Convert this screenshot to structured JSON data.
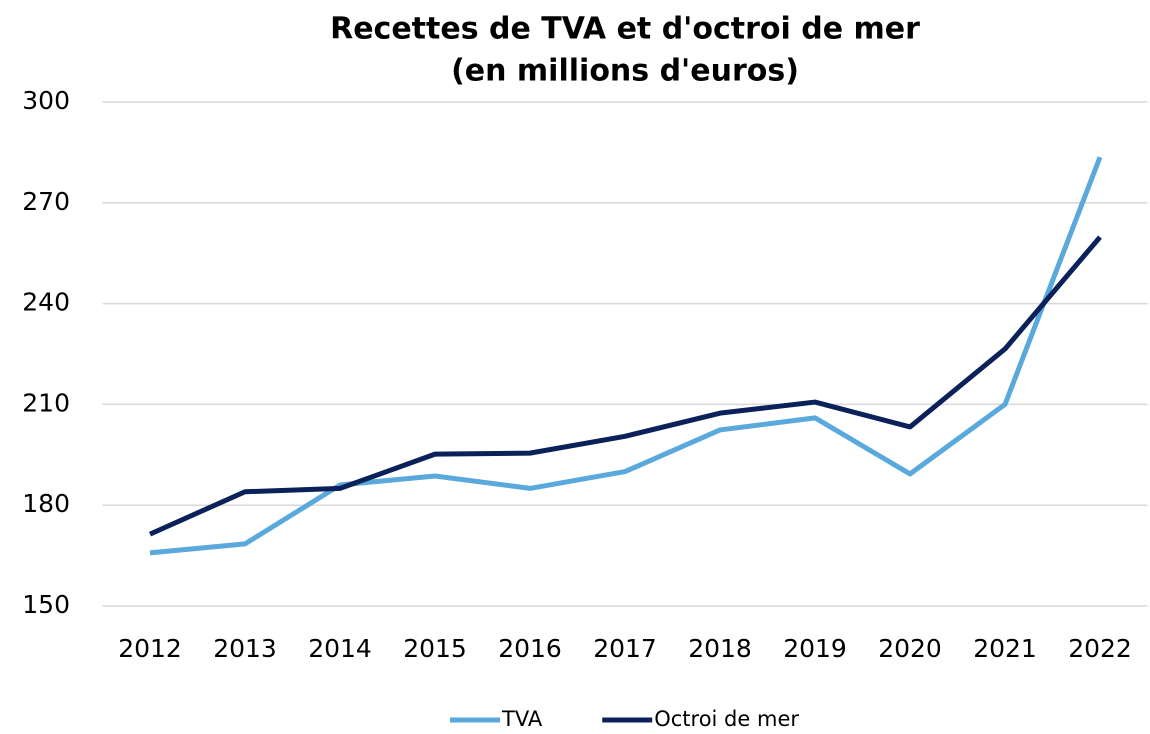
{
  "chart_data": {
    "type": "line",
    "title": [
      "Recettes de TVA et d'octroi de mer",
      "(en millions d'euros)"
    ],
    "categories": [
      "2012",
      "2013",
      "2014",
      "2015",
      "2016",
      "2017",
      "2018",
      "2019",
      "2020",
      "2021",
      "2022"
    ],
    "series": [
      {
        "name": "TVA",
        "color": "#5aa9dc",
        "values": [
          165.8,
          168.5,
          186,
          188.7,
          185,
          190,
          202.4,
          206,
          189.3,
          210,
          283.6
        ]
      },
      {
        "name": "Octroi de mer",
        "color": "#0b2159",
        "values": [
          171.4,
          184,
          185,
          195.2,
          195.5,
          200.5,
          207.4,
          210.7,
          203.3,
          226.5,
          259.8
        ]
      }
    ],
    "ylim": [
      150,
      300
    ],
    "yticks": [
      150,
      180,
      210,
      240,
      270,
      300
    ],
    "grid": true,
    "legend": "bottom"
  }
}
